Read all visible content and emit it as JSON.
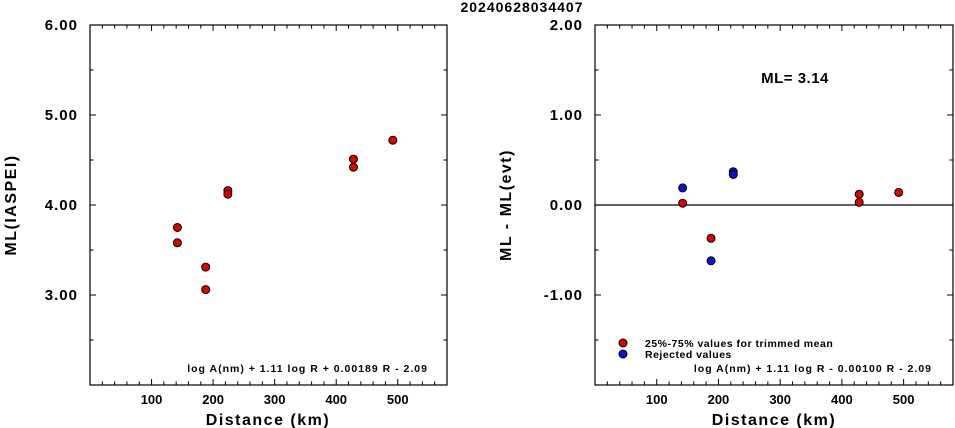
{
  "title": "20240628034407",
  "chart_data": [
    {
      "type": "scatter",
      "xlabel": "Distance (km)",
      "ylabel": "ML(IASPEI)",
      "xlim": [
        0,
        580
      ],
      "ylim": [
        2.0,
        6.0
      ],
      "x_ticks": [
        "100",
        "200",
        "300",
        "400",
        "500"
      ],
      "y_ticks": [
        "3.00",
        "4.00",
        "5.00",
        "6.00"
      ],
      "formula": "log A(nm) + 1.11 log R + 0.00189 R - 2.09",
      "series": [
        {
          "color": "#e00000",
          "points": [
            [
              142,
              3.75
            ],
            [
              142,
              3.58
            ],
            [
              188,
              3.31
            ],
            [
              188,
              3.06
            ],
            [
              224,
              4.16
            ],
            [
              224,
              4.12
            ],
            [
              428,
              4.51
            ],
            [
              428,
              4.42
            ],
            [
              492,
              4.72
            ]
          ]
        }
      ]
    },
    {
      "type": "scatter",
      "xlabel": "Distance (km)",
      "ylabel": "ML - ML(evt)",
      "xlim": [
        0,
        580
      ],
      "ylim": [
        -2.0,
        2.0
      ],
      "x_ticks": [
        "100",
        "200",
        "300",
        "400",
        "500"
      ],
      "y_ticks": [
        "-1.00",
        "0.00",
        "1.00",
        "2.00"
      ],
      "reference_line": 0,
      "annotation": "ML= 3.14",
      "formula": "log A(nm) + 1.11 log R - 0.00100 R - 2.09",
      "series": [
        {
          "name": "25%-75% values for trimmed mean",
          "color": "#e00000",
          "points": [
            [
              142,
              0.02
            ],
            [
              188,
              -0.37
            ],
            [
              428,
              0.12
            ],
            [
              428,
              0.03
            ],
            [
              492,
              0.14
            ]
          ]
        },
        {
          "name": "Rejected values",
          "color": "#1010d0",
          "points": [
            [
              142,
              0.19
            ],
            [
              188,
              -0.62
            ],
            [
              224,
              0.37
            ],
            [
              224,
              0.34
            ]
          ]
        }
      ]
    }
  ]
}
